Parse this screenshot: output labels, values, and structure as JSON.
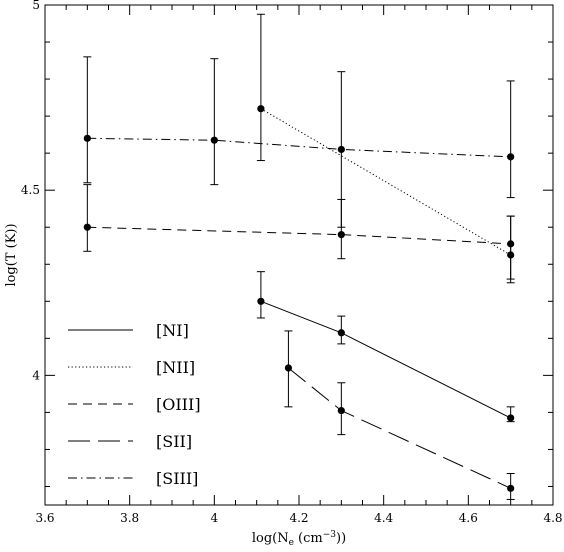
{
  "chart_data": {
    "type": "line",
    "title": "",
    "xlabel_main": "log(N",
    "xlabel_sub": "e",
    "xlabel_tail": " (cm",
    "xlabel_sup": "−3",
    "xlabel_end": "))",
    "ylabel": "log(T (K))",
    "xlim": [
      3.6,
      4.8
    ],
    "ylim": [
      3.65,
      5.0
    ],
    "xticks": [
      3.6,
      3.8,
      4.0,
      4.2,
      4.4,
      4.6,
      4.8
    ],
    "xtick_labels": [
      "3.6",
      "3.8",
      "4",
      "4.2",
      "4.4",
      "4.6",
      "4.8"
    ],
    "yticks": [
      4.0,
      4.5,
      5.0
    ],
    "ytick_labels": [
      "4",
      "4.5",
      "5"
    ],
    "grid": false,
    "legend_position": "lower-left",
    "series": [
      {
        "name": "[NI]",
        "style": "solid",
        "points": [
          {
            "x": 4.11,
            "y": 4.2,
            "lo": 4.155,
            "hi": 4.28
          },
          {
            "x": 4.3,
            "y": 4.115,
            "lo": 4.085,
            "hi": 4.16
          },
          {
            "x": 4.7,
            "y": 3.885,
            "lo": 3.875,
            "hi": 3.915
          }
        ]
      },
      {
        "name": "[NII]",
        "style": "dotted",
        "points": [
          {
            "x": 4.11,
            "y": 4.72,
            "lo": 4.58,
            "hi": 4.975
          },
          {
            "x": 4.7,
            "y": 4.325,
            "lo": 4.25,
            "hi": 4.43
          }
        ]
      },
      {
        "name": "[OIII]",
        "style": "short-dash",
        "points": [
          {
            "x": 3.7,
            "y": 4.4,
            "lo": 4.335,
            "hi": 4.515
          },
          {
            "x": 4.3,
            "y": 4.38,
            "lo": 4.315,
            "hi": 4.475
          },
          {
            "x": 4.7,
            "y": 4.355,
            "lo": 4.26,
            "hi": 4.43
          }
        ]
      },
      {
        "name": "[SII]",
        "style": "long-dash",
        "points": [
          {
            "x": 4.175,
            "y": 4.02,
            "lo": 3.915,
            "hi": 4.12
          },
          {
            "x": 4.3,
            "y": 3.905,
            "lo": 3.84,
            "hi": 3.98
          },
          {
            "x": 4.7,
            "y": 3.695,
            "lo": 3.665,
            "hi": 3.735
          }
        ]
      },
      {
        "name": "[SIII]",
        "style": "dash-dot",
        "points": [
          {
            "x": 3.7,
            "y": 4.64,
            "lo": 4.52,
            "hi": 4.86
          },
          {
            "x": 4.0,
            "y": 4.635,
            "lo": 4.515,
            "hi": 4.855
          },
          {
            "x": 4.3,
            "y": 4.61,
            "lo": 4.4,
            "hi": 4.82
          },
          {
            "x": 4.7,
            "y": 4.59,
            "lo": 4.48,
            "hi": 4.795
          }
        ]
      }
    ]
  }
}
